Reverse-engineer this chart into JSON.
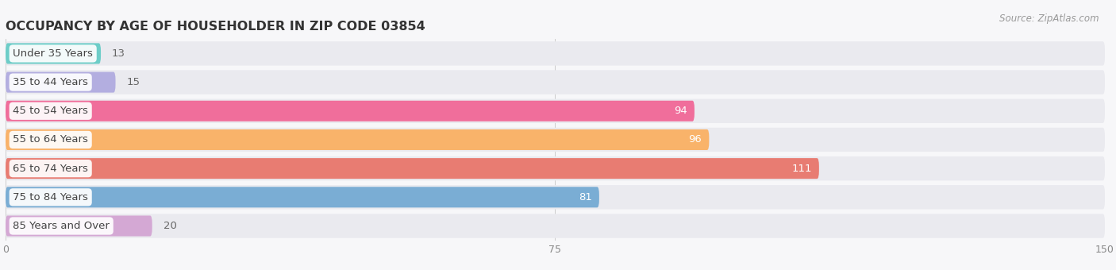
{
  "title": "OCCUPANCY BY AGE OF HOUSEHOLDER IN ZIP CODE 03854",
  "source": "Source: ZipAtlas.com",
  "categories": [
    "Under 35 Years",
    "35 to 44 Years",
    "45 to 54 Years",
    "55 to 64 Years",
    "65 to 74 Years",
    "75 to 84 Years",
    "85 Years and Over"
  ],
  "values": [
    13,
    15,
    94,
    96,
    111,
    81,
    20
  ],
  "bar_colors": [
    "#6dcdc8",
    "#b3aee0",
    "#f06e9b",
    "#f9b36a",
    "#e87c72",
    "#7aadd4",
    "#d4a8d4"
  ],
  "xlim": [
    0,
    150
  ],
  "xticks": [
    0,
    75,
    150
  ],
  "title_fontsize": 11.5,
  "label_fontsize": 9.5,
  "value_fontsize": 9.5,
  "background_color": "#f7f7f9",
  "row_bg_color": "#eaeaef",
  "label_bg_color": "#ffffff"
}
